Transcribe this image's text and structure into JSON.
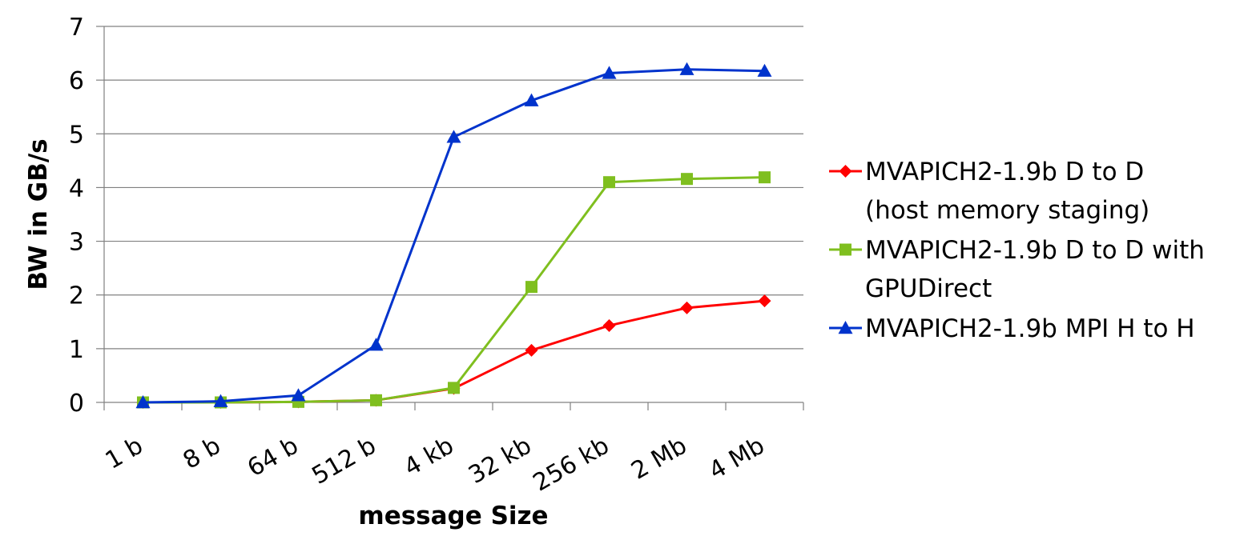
{
  "chart_data": {
    "type": "line",
    "title": "",
    "xlabel": "message Size",
    "ylabel": "BW in GB/s",
    "categories": [
      "1 b",
      "8 b",
      "64 b",
      "512 b",
      "4 kb",
      "32 kb",
      "256 kb",
      "2 Mb",
      "4 Mb"
    ],
    "ylim": [
      0,
      7
    ],
    "yticks": [
      "0",
      "1",
      "2",
      "3",
      "4",
      "5",
      "6",
      "7"
    ],
    "grid": true,
    "legend_position": "right",
    "series": [
      {
        "name_lines": [
          "MVAPICH2-1.9b D to D",
          "(host memory staging)"
        ],
        "marker": "diamond",
        "color": "#ff0000",
        "values": [
          0.0,
          0.0,
          0.01,
          0.04,
          0.26,
          0.97,
          1.43,
          1.76,
          1.89
        ]
      },
      {
        "name_lines": [
          "MVAPICH2-1.9b D to D with",
          "GPUDirect"
        ],
        "marker": "square",
        "color": "#7fbf1f",
        "values": [
          0.0,
          0.0,
          0.01,
          0.04,
          0.27,
          2.15,
          4.1,
          4.16,
          4.19
        ]
      },
      {
        "name_lines": [
          "MVAPICH2-1.9b MPI H to H"
        ],
        "marker": "triangle",
        "color": "#0033cc",
        "values": [
          0.0,
          0.02,
          0.13,
          1.07,
          4.94,
          5.62,
          6.13,
          6.2,
          6.17
        ]
      }
    ]
  }
}
